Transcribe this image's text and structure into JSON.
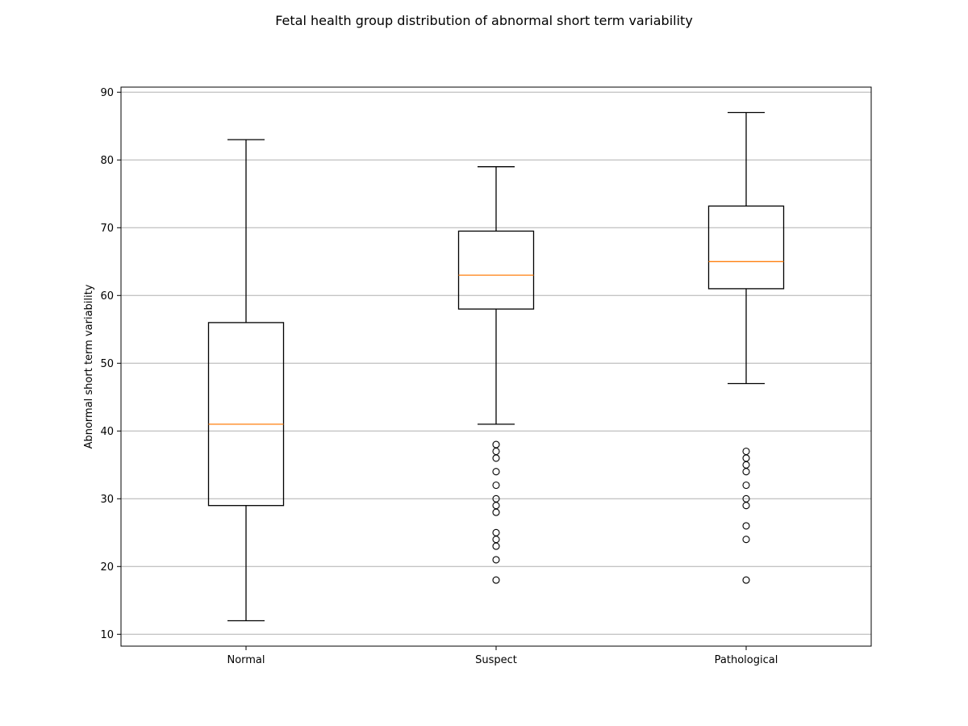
{
  "chart_data": {
    "type": "box",
    "title": "Fetal health group distribution of abnormal short term variability",
    "xlabel": "",
    "ylabel": "Abnormal short term variability",
    "categories": [
      "Normal",
      "Suspect",
      "Pathological"
    ],
    "ylim": [
      8.25,
      90.75
    ],
    "yticks": [
      10,
      20,
      30,
      40,
      50,
      60,
      70,
      80,
      90
    ],
    "grid": "y",
    "box_color": "#000000",
    "median_color": "#ff7f0e",
    "boxes": [
      {
        "name": "Normal",
        "whisker_low": 12,
        "q1": 29,
        "median": 41,
        "q3": 56,
        "whisker_high": 83,
        "outliers": []
      },
      {
        "name": "Suspect",
        "whisker_low": 41,
        "q1": 58,
        "median": 63,
        "q3": 69.5,
        "whisker_high": 79,
        "outliers": [
          38,
          37,
          36,
          34,
          32,
          30,
          29,
          28,
          25,
          24,
          23,
          21,
          18
        ]
      },
      {
        "name": "Pathological",
        "whisker_low": 47,
        "q1": 61,
        "median": 65,
        "q3": 73.2,
        "whisker_high": 87,
        "outliers": [
          37,
          36,
          35,
          34,
          32,
          30,
          29,
          26,
          24,
          18
        ]
      }
    ]
  }
}
